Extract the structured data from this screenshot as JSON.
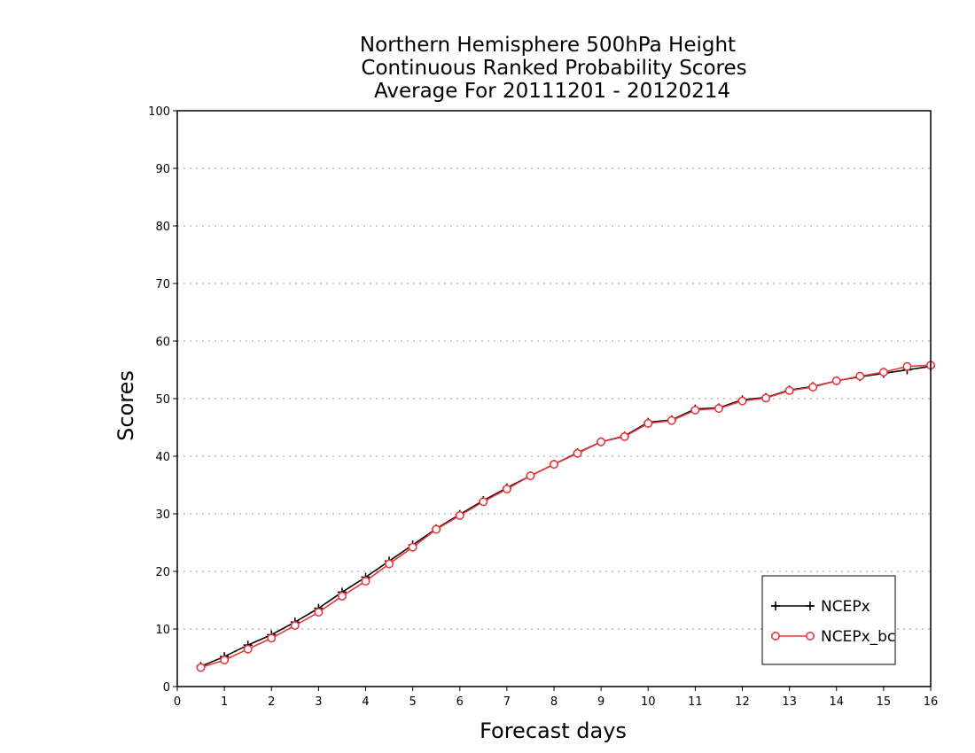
{
  "chart_data": {
    "type": "line",
    "title": [
      "Northern Hemisphere 500hPa Height",
      "Continuous Ranked Probability Scores",
      "Average For 20111201 - 20120214"
    ],
    "xlabel": "Forecast days",
    "ylabel": "Scores",
    "xlim": [
      0,
      16
    ],
    "ylim": [
      0,
      100
    ],
    "xticks": [
      0,
      1,
      2,
      3,
      4,
      5,
      6,
      7,
      8,
      9,
      10,
      11,
      12,
      13,
      14,
      15,
      16
    ],
    "yticks": [
      0,
      10,
      20,
      30,
      40,
      50,
      60,
      70,
      80,
      90,
      100
    ],
    "grid": "horizontal dotted",
    "legend_position": "bottom-right",
    "x": [
      0.5,
      1,
      1.5,
      2,
      2.5,
      3,
      3.5,
      4,
      4.5,
      5,
      5.5,
      6,
      6.5,
      7,
      7.5,
      8,
      8.5,
      9,
      9.5,
      10,
      10.5,
      11,
      11.5,
      12,
      12.5,
      13,
      13.5,
      14,
      14.5,
      15,
      15.5,
      16
    ],
    "series": [
      {
        "name": "NCEPx",
        "color": "#000000",
        "marker": "plus",
        "values": [
          3.5,
          5.2,
          7.2,
          9.0,
          11.2,
          13.6,
          16.4,
          19.0,
          21.8,
          24.6,
          27.4,
          29.9,
          32.3,
          34.5,
          36.6,
          38.6,
          40.6,
          42.5,
          43.5,
          45.9,
          46.3,
          48.2,
          48.4,
          49.8,
          50.2,
          51.5,
          52.1,
          53.1,
          53.8,
          54.4,
          55.0,
          55.6
        ]
      },
      {
        "name": "NCEPx_bc",
        "color": "#e8383d",
        "marker": "circle",
        "values": [
          3.3,
          4.6,
          6.5,
          8.4,
          10.6,
          12.9,
          15.7,
          18.3,
          21.3,
          24.2,
          27.3,
          29.7,
          32.1,
          34.3,
          36.6,
          38.6,
          40.5,
          42.5,
          43.4,
          45.7,
          46.2,
          48.0,
          48.3,
          49.6,
          50.1,
          51.4,
          52.0,
          53.1,
          53.9,
          54.6,
          55.6,
          55.8
        ]
      }
    ]
  }
}
